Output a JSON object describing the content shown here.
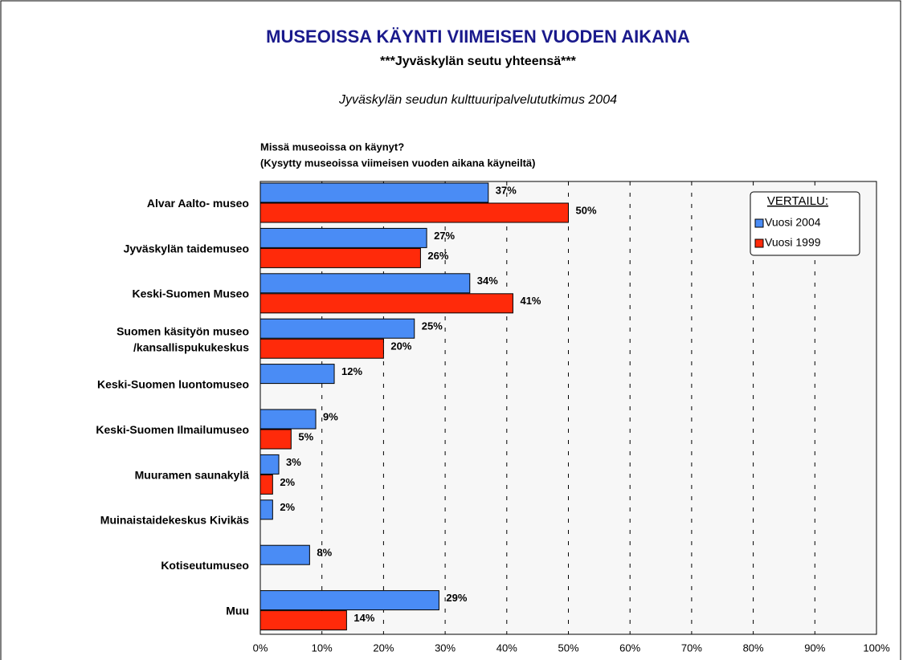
{
  "chart_data": {
    "type": "bar",
    "orientation": "horizontal",
    "title": "MUSEOISSA KÄYNTI VIIMEISEN VUODEN AIKANA",
    "subtitle": "***Jyväskylän seutu yhteensä***",
    "source": "Jyväskylän seudun kulttuuripalvelututkimus 2004",
    "question": [
      "Missä museoissa on käynyt?",
      "(Kysytty museoissa viimeisen vuoden aikana käyneiltä)"
    ],
    "categories": [
      "Alvar Aalto- museo",
      "Jyväskylän taidemuseo",
      "Keski-Suomen Museo",
      "Suomen käsityön museo\n/kansallispukukeskus",
      "Keski-Suomen luontomuseo",
      "Keski-Suomen Ilmailumuseo",
      "Muuramen saunakylä",
      "Muinaistaidekeskus Kivikäs",
      "Kotiseutumuseo",
      "Muu"
    ],
    "series": [
      {
        "name": "Vuosi 2004",
        "color": "#4a8cf5",
        "values": [
          37,
          27,
          34,
          25,
          12,
          9,
          3,
          2,
          8,
          29
        ],
        "value_labels": [
          "37%",
          "27%",
          "34%",
          "25%",
          "12%",
          "9%",
          "3%",
          "2%",
          "8%",
          "29%"
        ]
      },
      {
        "name": "Vuosi 1999",
        "color": "#ff2a0a",
        "values": [
          50,
          26,
          41,
          20,
          null,
          5,
          2,
          null,
          null,
          14
        ],
        "value_labels": [
          "50%",
          "26%",
          "41%",
          "20%",
          null,
          "5%",
          "2%",
          null,
          null,
          "14%"
        ]
      }
    ],
    "legend_title": "VERTAILU:",
    "legend": "top-right",
    "grid": true,
    "xlim": [
      0,
      100
    ],
    "xticks": [
      {
        "value": 0,
        "label": "0%"
      },
      {
        "value": 10,
        "label": "10%"
      },
      {
        "value": 20,
        "label": "20%"
      },
      {
        "value": 30,
        "label": "30%"
      },
      {
        "value": 40,
        "label": "40%"
      },
      {
        "value": 50,
        "label": "50%"
      },
      {
        "value": 60,
        "label": "60%"
      },
      {
        "value": 70,
        "label": "70%"
      },
      {
        "value": 80,
        "label": "80%"
      },
      {
        "value": 90,
        "label": "90%"
      },
      {
        "value": 100,
        "label": "100%"
      }
    ]
  }
}
